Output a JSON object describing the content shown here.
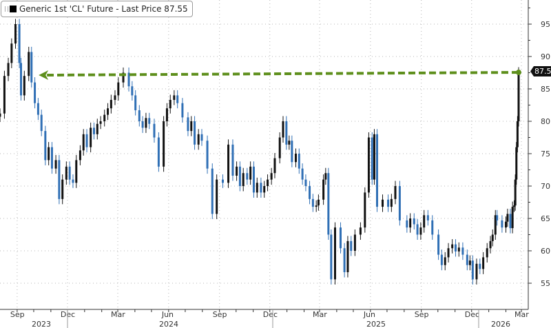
{
  "chart_data": {
    "type": "candlestick",
    "title": "",
    "legend": {
      "label": "Generic 1st 'CL' Future - Last Price 87.55",
      "placement": "top-left"
    },
    "last_price_label": "87.55",
    "ylim": [
      53,
      99
    ],
    "yticks": [
      55,
      60,
      65,
      70,
      75,
      80,
      85,
      90,
      95
    ],
    "y_axis_side": "right",
    "grid": true,
    "x_month_labels": [
      {
        "date": "2023-09-01",
        "label": "Sep"
      },
      {
        "date": "2023-12-01",
        "label": "Dec"
      },
      {
        "date": "2024-03-01",
        "label": "Mar"
      },
      {
        "date": "2024-06-01",
        "label": "Jun"
      },
      {
        "date": "2024-09-01",
        "label": "Sep"
      },
      {
        "date": "2024-12-01",
        "label": "Dec"
      },
      {
        "date": "2025-03-01",
        "label": "Mar"
      },
      {
        "date": "2025-06-01",
        "label": "Jun"
      },
      {
        "date": "2025-09-01",
        "label": "Sep"
      },
      {
        "date": "2025-12-01",
        "label": "Dec"
      },
      {
        "date": "2026-03-01",
        "label": "Mar"
      }
    ],
    "x_year_labels": [
      "2023",
      "2024",
      "2025",
      "2026"
    ],
    "colors": {
      "up": "#111111",
      "down": "#2f6fb5",
      "annotation": "#5e8f1c",
      "last_box": "#111111"
    },
    "annotation": {
      "type": "dashed-arrow",
      "from_date": "2026-02-24",
      "to_date": "2023-10-10",
      "level": 87.55
    },
    "series": [
      [
        "2023-08-01",
        81.2
      ],
      [
        "2023-08-09",
        87
      ],
      [
        "2023-08-16",
        89
      ],
      [
        "2023-08-22",
        92
      ],
      [
        "2023-08-29",
        95
      ],
      [
        "2023-09-05",
        89
      ],
      [
        "2023-09-08",
        84
      ],
      [
        "2023-09-14",
        87
      ],
      [
        "2023-09-22",
        90.7
      ],
      [
        "2023-09-27",
        86
      ],
      [
        "2023-10-03",
        82.8
      ],
      [
        "2023-10-09",
        81
      ],
      [
        "2023-10-15",
        78.5
      ],
      [
        "2023-10-22",
        74
      ],
      [
        "2023-10-28",
        76
      ],
      [
        "2023-11-03",
        72.7
      ],
      [
        "2023-11-10",
        74
      ],
      [
        "2023-11-16",
        68
      ],
      [
        "2023-11-22",
        71
      ],
      [
        "2023-11-29",
        73
      ],
      [
        "2023-12-05",
        71
      ],
      [
        "2023-12-11",
        70.5
      ],
      [
        "2023-12-17",
        74
      ],
      [
        "2023-12-24",
        75.5
      ],
      [
        "2023-12-30",
        78
      ],
      [
        "2024-01-05",
        76
      ],
      [
        "2024-01-12",
        79
      ],
      [
        "2024-01-18",
        78
      ],
      [
        "2024-01-24",
        79.6
      ],
      [
        "2024-01-30",
        80
      ],
      [
        "2024-02-06",
        81
      ],
      [
        "2024-02-12",
        82
      ],
      [
        "2024-02-18",
        83.3
      ],
      [
        "2024-02-25",
        84
      ],
      [
        "2024-03-02",
        86
      ],
      [
        "2024-03-11",
        87.5
      ],
      [
        "2024-03-21",
        85.4
      ],
      [
        "2024-03-27",
        84
      ],
      [
        "2024-04-02",
        81.7
      ],
      [
        "2024-04-09",
        80
      ],
      [
        "2024-04-15",
        79
      ],
      [
        "2024-04-21",
        80.5
      ],
      [
        "2024-04-27",
        79.6
      ],
      [
        "2024-05-06",
        77.5
      ],
      [
        "2024-05-14",
        73
      ],
      [
        "2024-05-23",
        80
      ],
      [
        "2024-05-29",
        82
      ],
      [
        "2024-06-04",
        83.3
      ],
      [
        "2024-06-11",
        84
      ],
      [
        "2024-06-17",
        82.8
      ],
      [
        "2024-06-26",
        80.6
      ],
      [
        "2024-07-06",
        78.5
      ],
      [
        "2024-07-12",
        80
      ],
      [
        "2024-07-18",
        76.4
      ],
      [
        "2024-07-25",
        78
      ],
      [
        "2024-07-31",
        77
      ],
      [
        "2024-08-10",
        72.7
      ],
      [
        "2024-08-19",
        65.7
      ],
      [
        "2024-08-27",
        71
      ],
      [
        "2024-09-07",
        70.5
      ],
      [
        "2024-09-17",
        76.4
      ],
      [
        "2024-09-25",
        71.6
      ],
      [
        "2024-10-02",
        73
      ],
      [
        "2024-10-08",
        70
      ],
      [
        "2024-10-14",
        72
      ],
      [
        "2024-10-21",
        71
      ],
      [
        "2024-10-27",
        73
      ],
      [
        "2024-11-02",
        69
      ],
      [
        "2024-11-08",
        70.5
      ],
      [
        "2024-11-15",
        69
      ],
      [
        "2024-11-21",
        70
      ],
      [
        "2024-11-27",
        71
      ],
      [
        "2024-12-04",
        72
      ],
      [
        "2024-12-10",
        74.3
      ],
      [
        "2024-12-19",
        77.5
      ],
      [
        "2024-12-25",
        80
      ],
      [
        "2024-12-31",
        76.4
      ],
      [
        "2025-01-05",
        77
      ],
      [
        "2025-01-10",
        73.7
      ],
      [
        "2025-01-17",
        75
      ],
      [
        "2025-01-23",
        72.7
      ],
      [
        "2025-01-29",
        71
      ],
      [
        "2025-02-04",
        70
      ],
      [
        "2025-02-11",
        68
      ],
      [
        "2025-02-17",
        66.8
      ],
      [
        "2025-02-23",
        67
      ],
      [
        "2025-02-27",
        67.9
      ],
      [
        "2025-03-08",
        71
      ],
      [
        "2025-03-12",
        72
      ],
      [
        "2025-03-17",
        62.5
      ],
      [
        "2025-03-22",
        55.6
      ],
      [
        "2025-03-29",
        63.6
      ],
      [
        "2025-04-08",
        60.4
      ],
      [
        "2025-04-15",
        56.7
      ],
      [
        "2025-04-21",
        61.5
      ],
      [
        "2025-04-27",
        60
      ],
      [
        "2025-05-04",
        62.5
      ],
      [
        "2025-05-14",
        63.6
      ],
      [
        "2025-05-22",
        69
      ],
      [
        "2025-05-29",
        77.5
      ],
      [
        "2025-06-04",
        71
      ],
      [
        "2025-06-08",
        78
      ],
      [
        "2025-06-13",
        66.8
      ],
      [
        "2025-06-23",
        67.9
      ],
      [
        "2025-07-03",
        66.8
      ],
      [
        "2025-07-09",
        68
      ],
      [
        "2025-07-16",
        70
      ],
      [
        "2025-07-24",
        64.7
      ],
      [
        "2025-08-06",
        63.6
      ],
      [
        "2025-08-12",
        65
      ],
      [
        "2025-08-19",
        64.1
      ],
      [
        "2025-08-25",
        62.5
      ],
      [
        "2025-08-31",
        63.6
      ],
      [
        "2025-09-06",
        65.5
      ],
      [
        "2025-09-13",
        64.7
      ],
      [
        "2025-09-21",
        62.5
      ],
      [
        "2025-10-02",
        59.4
      ],
      [
        "2025-10-08",
        57.8
      ],
      [
        "2025-10-14",
        59
      ],
      [
        "2025-10-20",
        60.4
      ],
      [
        "2025-10-27",
        61
      ],
      [
        "2025-11-02",
        59.9
      ],
      [
        "2025-11-08",
        60.5
      ],
      [
        "2025-11-15",
        59.4
      ],
      [
        "2025-11-23",
        57.8
      ],
      [
        "2025-11-28",
        58.5
      ],
      [
        "2025-12-03",
        55.6
      ],
      [
        "2025-12-10",
        58
      ],
      [
        "2025-12-16",
        57.2
      ],
      [
        "2025-12-22",
        59
      ],
      [
        "2025-12-29",
        60.4
      ],
      [
        "2026-01-04",
        61.5
      ],
      [
        "2026-01-08",
        62.5
      ],
      [
        "2026-01-13",
        65.5
      ],
      [
        "2026-01-16",
        64.7
      ],
      [
        "2026-01-25",
        63.6
      ],
      [
        "2026-02-01",
        64.5
      ],
      [
        "2026-02-04",
        65.7
      ],
      [
        "2026-02-09",
        63.5
      ],
      [
        "2026-02-13",
        66.8
      ],
      [
        "2026-02-16",
        67
      ],
      [
        "2026-02-18",
        71
      ],
      [
        "2026-02-20",
        76
      ],
      [
        "2026-02-22",
        80
      ],
      [
        "2026-02-24",
        87.55
      ]
    ]
  }
}
